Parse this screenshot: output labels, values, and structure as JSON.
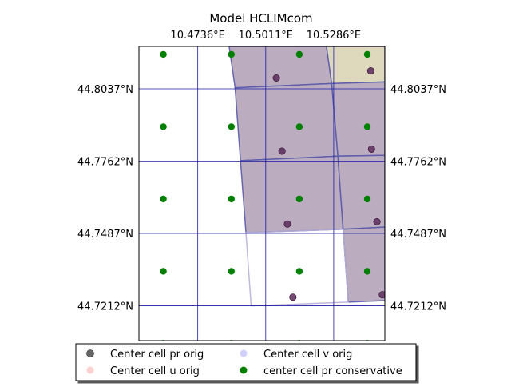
{
  "chart_data": {
    "type": "scatter",
    "title": "Model HCLIMcom",
    "x_ticks": [
      {
        "value": 10.4736,
        "label": "10.4736°E"
      },
      {
        "value": 10.5011,
        "label": "10.5011°E"
      },
      {
        "value": 10.5286,
        "label": "10.5286°E"
      }
    ],
    "y_ticks": [
      {
        "value": 44.8037,
        "label": "44.8037°N"
      },
      {
        "value": 44.7762,
        "label": "44.7762°N"
      },
      {
        "value": 44.7487,
        "label": "44.7487°N"
      },
      {
        "value": 44.7212,
        "label": "44.7212°N"
      }
    ],
    "xlim": [
      10.4498,
      10.5493
    ],
    "ylim": [
      44.708,
      44.8198
    ],
    "grid": true,
    "legend_position": "bottom",
    "legend": [
      {
        "label": "Center cell pr orig",
        "color": "#404040",
        "alpha": 0.8
      },
      {
        "label": "Center cell u orig",
        "color": "#ffb0b0",
        "alpha": 0.6
      },
      {
        "label": "Center cell v orig",
        "color": "#b0b0ff",
        "alpha": 0.6
      },
      {
        "label": "center cell pr conservative",
        "color": "#008000",
        "alpha": 1
      }
    ],
    "series": [
      {
        "name": "center cell pr conservative",
        "color": "#008000",
        "points": [
          [
            10.4597,
            44.8168
          ],
          [
            10.4872,
            44.8168
          ],
          [
            10.5147,
            44.8168
          ],
          [
            10.5422,
            44.8168
          ],
          [
            10.4597,
            44.7893
          ],
          [
            10.4872,
            44.7893
          ],
          [
            10.5147,
            44.7893
          ],
          [
            10.5422,
            44.7893
          ],
          [
            10.4597,
            44.7618
          ],
          [
            10.4872,
            44.7618
          ],
          [
            10.5147,
            44.7618
          ],
          [
            10.5422,
            44.7618
          ],
          [
            10.4597,
            44.7343
          ],
          [
            10.4872,
            44.7343
          ],
          [
            10.5147,
            44.7343
          ],
          [
            10.5422,
            44.7343
          ],
          [
            10.4597,
            44.707
          ],
          [
            10.4872,
            44.707
          ],
          [
            10.5147,
            44.707
          ],
          [
            10.5422,
            44.707
          ]
        ]
      },
      {
        "name": "Center cell pr orig",
        "color": "#5a2a5a",
        "points": [
          [
            10.5054,
            44.8078
          ],
          [
            10.5436,
            44.8105
          ],
          [
            10.5077,
            44.78
          ],
          [
            10.5439,
            44.7808
          ],
          [
            10.5099,
            44.7523
          ],
          [
            10.5461,
            44.7531
          ],
          [
            10.5121,
            44.7245
          ],
          [
            10.5483,
            44.7254
          ]
        ]
      }
    ],
    "grid_polygons": [
      {
        "fill": "#bbadbf",
        "points": [
          [
            10.4863,
            44.8198
          ],
          [
            10.5257,
            44.8198
          ],
          [
            10.5278,
            44.8057
          ],
          [
            10.4887,
            44.8041
          ]
        ]
      },
      {
        "fill": "#ded9bd",
        "points": [
          [
            10.5257,
            44.8198
          ],
          [
            10.5493,
            44.8198
          ],
          [
            10.5493,
            44.8063
          ],
          [
            10.5278,
            44.8057
          ]
        ]
      },
      {
        "fill": "#bbadbf",
        "points": [
          [
            10.4887,
            44.8041
          ],
          [
            10.5278,
            44.8057
          ],
          [
            10.5303,
            44.7781
          ],
          [
            10.4909,
            44.7764
          ]
        ]
      },
      {
        "fill": "#bbadbf",
        "points": [
          [
            10.5278,
            44.8057
          ],
          [
            10.5493,
            44.8063
          ],
          [
            10.5493,
            44.7784
          ],
          [
            10.5303,
            44.7781
          ]
        ]
      },
      {
        "fill": "#bbadbf",
        "points": [
          [
            10.4909,
            44.7764
          ],
          [
            10.5303,
            44.7781
          ],
          [
            10.5324,
            44.7503
          ],
          [
            10.4931,
            44.749
          ]
        ]
      },
      {
        "fill": "#bbadbf",
        "points": [
          [
            10.5303,
            44.7781
          ],
          [
            10.5493,
            44.7784
          ],
          [
            10.5493,
            44.7511
          ],
          [
            10.5324,
            44.7503
          ]
        ]
      },
      {
        "fill": "#bbadbf",
        "points": [
          [
            10.5324,
            44.7503
          ],
          [
            10.5493,
            44.7511
          ],
          [
            10.5493,
            44.7232
          ],
          [
            10.5345,
            44.7226
          ]
        ]
      },
      {
        "fill": "none",
        "points": [
          [
            10.4931,
            44.749
          ],
          [
            10.5324,
            44.7503
          ],
          [
            10.5345,
            44.7226
          ],
          [
            10.4952,
            44.7212
          ]
        ]
      }
    ]
  }
}
